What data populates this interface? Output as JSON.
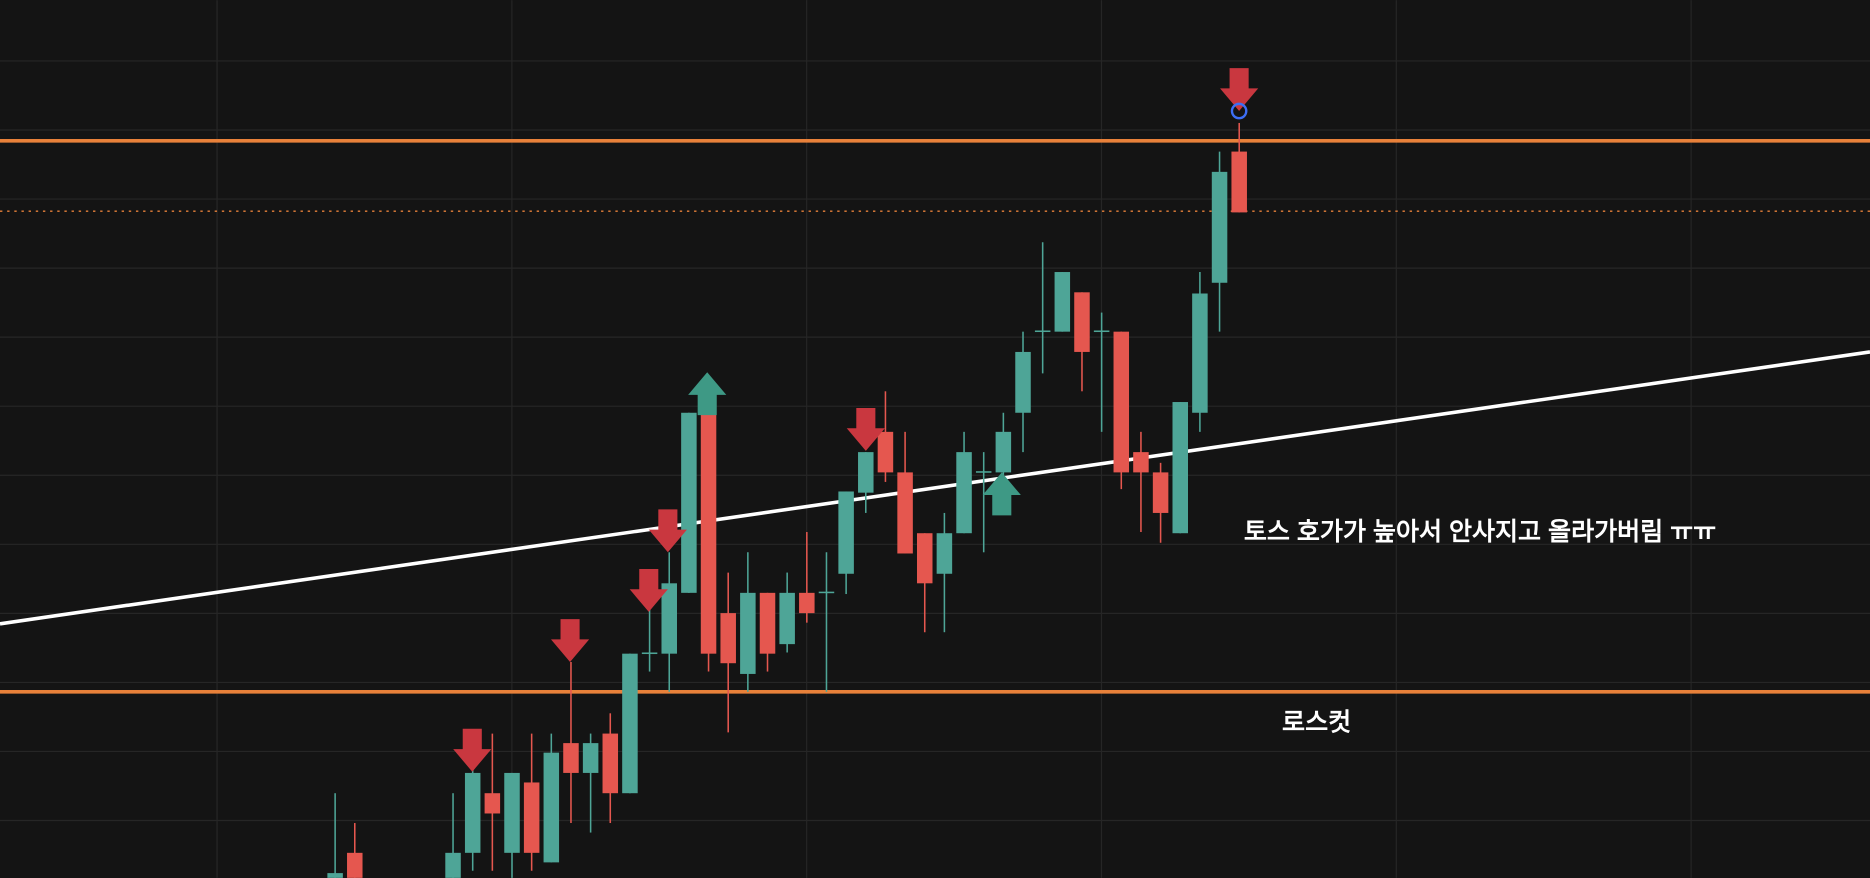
{
  "chart_data": {
    "type": "candlestick",
    "annotations": [
      "토스 호가가 높아서 안사지고 올라가버림 ㅠㅠ",
      "로스컷"
    ],
    "categories": [
      null,
      null,
      null,
      null,
      null,
      null,
      null,
      null,
      null,
      null,
      null,
      null,
      null,
      null,
      null,
      null,
      null,
      null,
      null,
      null,
      null,
      null,
      null,
      null,
      null,
      null,
      null,
      null,
      null,
      null,
      null,
      null,
      null,
      null,
      null,
      null,
      null,
      null,
      null,
      null,
      null,
      null,
      null,
      null,
      null,
      null,
      null
    ],
    "open": [
      0,
      21,
      null,
      null,
      null,
      null,
      0,
      21,
      71,
      21,
      80,
      13,
      113,
      88,
      121,
      71,
      188,
      188,
      239,
      390,
      222,
      171,
      239,
      196,
      239,
      239,
      255,
      323,
      374,
      340,
      289,
      255,
      289,
      340,
      340,
      390,
      458,
      458,
      491,
      458,
      458,
      357,
      340,
      289,
      390,
      499,
      609
    ],
    "high": [
      71,
      46,
      null,
      null,
      null,
      null,
      71,
      96,
      121,
      88,
      121,
      121,
      181,
      121,
      138,
      188,
      226,
      273,
      390,
      390,
      256,
      273,
      239,
      256,
      290,
      273,
      324,
      357,
      408,
      374,
      289,
      306,
      374,
      357,
      390,
      458,
      533,
      508,
      491,
      474,
      458,
      374,
      348,
      399,
      508,
      609,
      633
    ],
    "low": [
      0,
      0,
      null,
      null,
      null,
      null,
      0,
      6,
      6,
      0,
      6,
      13,
      46,
      38,
      46,
      71,
      173,
      156,
      239,
      173,
      122,
      156,
      173,
      189,
      214,
      156,
      238,
      306,
      332,
      272,
      206,
      206,
      289,
      273,
      306,
      357,
      423,
      458,
      408,
      374,
      326,
      290,
      281,
      289,
      374,
      458,
      558
    ],
    "close": [
      4,
      0,
      null,
      null,
      null,
      null,
      21,
      88,
      54,
      88,
      21,
      105,
      88,
      113,
      71,
      188,
      189,
      247,
      390,
      188,
      180,
      239,
      188,
      239,
      222,
      240,
      324,
      357,
      340,
      272,
      247,
      289,
      357,
      341,
      374,
      441,
      459,
      508,
      441,
      459,
      340,
      340,
      306,
      399,
      490,
      592,
      558
    ],
    "up_color": "#4ea597",
    "down_color": "#e5574f",
    "ylim": [
      0,
      736
    ],
    "levels": [
      618,
      156
    ],
    "level_color": "#e8813a",
    "dotted_level": 559,
    "trendline": [
      213,
      441
    ],
    "trendline_color": "#ffffff",
    "grid": true
  }
}
